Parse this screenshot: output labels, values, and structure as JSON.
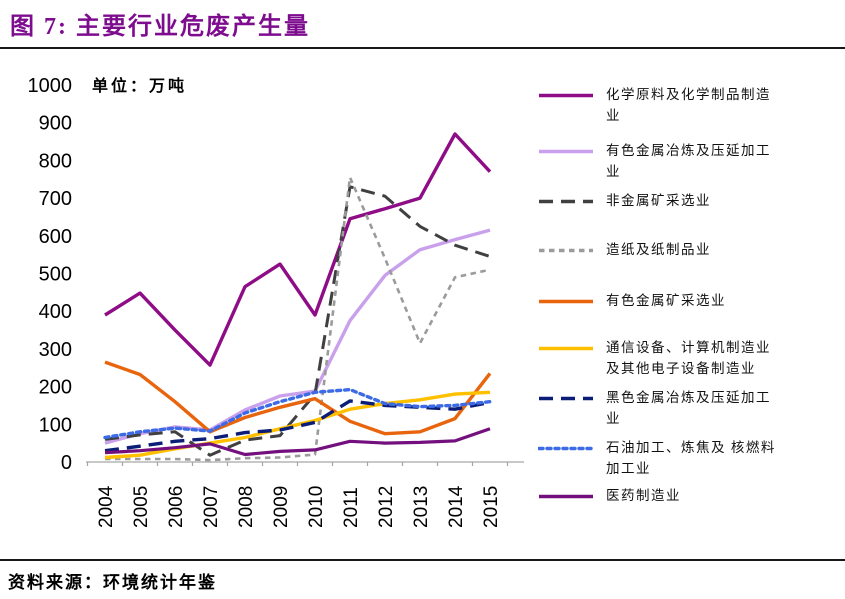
{
  "page": {
    "title": "图 7:  主要行业危废产生量",
    "source_note": "资料来源：环境统计年鉴"
  },
  "chart_data": {
    "type": "line",
    "unit_label": "单位：万吨",
    "categories": [
      "2004",
      "2005",
      "2006",
      "2007",
      "2008",
      "2009",
      "2010",
      "2011",
      "2012",
      "2013",
      "2014",
      "2015"
    ],
    "ylim": [
      0,
      1000
    ],
    "ytick_step": 100,
    "grid": false,
    "legend_position": "right",
    "series": [
      {
        "name": "化学原料及化学制品制造业",
        "color": "#8e0d86",
        "dash": "solid",
        "width": 3.4,
        "values": [
          390,
          448,
          350,
          257,
          465,
          525,
          390,
          645,
          672,
          700,
          870,
          770
        ]
      },
      {
        "name": "有色金属冶炼及压延加工业",
        "color": "#c9a0ec",
        "dash": "solid",
        "width": 3.4,
        "values": [
          50,
          75,
          93,
          85,
          138,
          175,
          188,
          375,
          495,
          563,
          590,
          615
        ]
      },
      {
        "name": "非金属矿采选业",
        "color": "#404040",
        "dash": "long",
        "width": 3,
        "values": [
          60,
          72,
          80,
          18,
          58,
          70,
          180,
          730,
          705,
          625,
          575,
          545
        ]
      },
      {
        "name": "造纸及纸制品业",
        "color": "#9b9b9b",
        "dash": "short",
        "width": 2.6,
        "values": [
          8,
          8,
          8,
          5,
          10,
          12,
          20,
          755,
          540,
          315,
          490,
          510
        ]
      },
      {
        "name": "有色金属矿采选业",
        "color": "#e8650e",
        "dash": "solid",
        "width": 3.4,
        "values": [
          265,
          232,
          160,
          80,
          118,
          145,
          168,
          108,
          75,
          80,
          115,
          235
        ]
      },
      {
        "name": "通信设备、计算机制造业及其他电子设备制造业",
        "color": "#ffc000",
        "dash": "solid",
        "width": 3.4,
        "values": [
          12,
          18,
          35,
          50,
          65,
          88,
          110,
          140,
          155,
          165,
          180,
          185
        ]
      },
      {
        "name": "黑色金属冶炼及压延加工业",
        "color": "#0a1e78",
        "dash": "long",
        "width": 3.4,
        "values": [
          30,
          42,
          55,
          62,
          78,
          85,
          105,
          162,
          150,
          145,
          140,
          158
        ]
      },
      {
        "name": "石油加工、炼焦及 核燃料加工业",
        "color": "#3d6be6",
        "dash": "dot",
        "width": 3.4,
        "values": [
          65,
          80,
          90,
          82,
          130,
          160,
          185,
          192,
          155,
          147,
          150,
          160
        ]
      },
      {
        "name": "医药制造业",
        "color": "#73107e",
        "dash": "solid",
        "width": 3.2,
        "values": [
          25,
          30,
          38,
          48,
          20,
          28,
          32,
          55,
          50,
          52,
          56,
          88
        ]
      }
    ]
  }
}
